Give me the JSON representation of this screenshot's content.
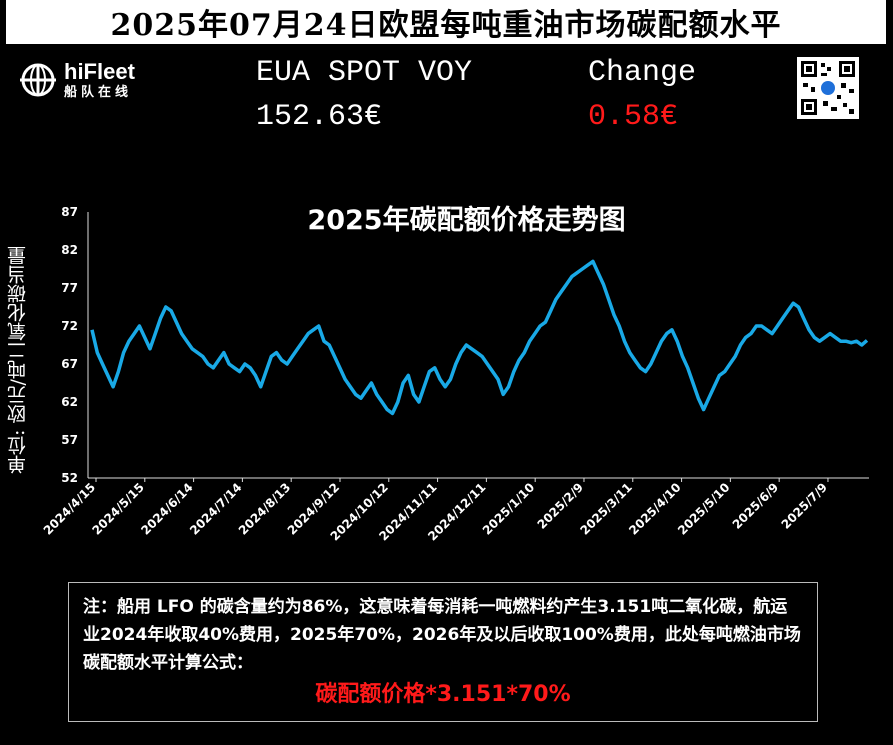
{
  "header": {
    "title": "2025年07月24日欧盟每吨重油市场碳配额水平",
    "logo_name": "hiFleet",
    "logo_sub": "船队在线",
    "eua_label": "EUA SPOT VOY",
    "eua_value": "152.63€",
    "change_label": "Change",
    "change_value": "0.58€"
  },
  "colors": {
    "line": "#19a9e6",
    "change": "#ff1a1a",
    "formula": "#ff1a1a"
  },
  "chart_data": {
    "type": "line",
    "title": "2025年碳配额价格走势图",
    "ylabel": "单位: 欧元/吨二氧化碳当量",
    "xlabel": "",
    "ylim": [
      52,
      87
    ],
    "yticks": [
      52,
      57,
      62,
      67,
      72,
      77,
      82,
      87
    ],
    "xtick_labels": [
      "2024/4/15",
      "2024/5/15",
      "2024/6/14",
      "2024/7/14",
      "2024/8/13",
      "2024/9/12",
      "2024/10/12",
      "2024/11/11",
      "2024/12/11",
      "2025/1/10",
      "2025/2/9",
      "2025/3/11",
      "2025/4/10",
      "2025/5/10",
      "2025/6/9",
      "2025/7/9"
    ],
    "grid": false,
    "series": [
      {
        "values": [
          71.5,
          68.5,
          67.0,
          65.5,
          64.0,
          66.0,
          68.5,
          70.0,
          71.0,
          72.0,
          70.5,
          69.0,
          71.0,
          73.0,
          74.5,
          74.0,
          72.5,
          71.0,
          70.0,
          69.0,
          68.5,
          68.0,
          67.0,
          66.5,
          67.5,
          68.5,
          67.0,
          66.5,
          66.0,
          67.0,
          66.5,
          65.5,
          64.0,
          66.0,
          68.0,
          68.5,
          67.5,
          67.0,
          68.0,
          69.0,
          70.0,
          71.0,
          71.5,
          72.0,
          70.0,
          69.5,
          68.0,
          66.5,
          65.0,
          64.0,
          63.0,
          62.5,
          63.5,
          64.5,
          63.0,
          62.0,
          61.0,
          60.5,
          62.0,
          64.5,
          65.5,
          63.0,
          62.0,
          64.0,
          66.0,
          66.5,
          65.0,
          64.0,
          65.0,
          67.0,
          68.5,
          69.5,
          69.0,
          68.5,
          68.0,
          67.0,
          66.0,
          65.0,
          63.0,
          64.0,
          66.0,
          67.5,
          68.5,
          70.0,
          71.0,
          72.0,
          72.5,
          74.0,
          75.5,
          76.5,
          77.5,
          78.5,
          79.0,
          79.5,
          80.0,
          80.5,
          79.0,
          77.5,
          75.5,
          73.5,
          72.0,
          70.0,
          68.5,
          67.5,
          66.5,
          66.0,
          67.0,
          68.5,
          70.0,
          71.0,
          71.5,
          70.0,
          68.0,
          66.5,
          64.5,
          62.5,
          61.0,
          62.5,
          64.0,
          65.5,
          66.0,
          67.0,
          68.0,
          69.5,
          70.5,
          71.0,
          72.0,
          72.0,
          71.5,
          71.0,
          72.0,
          73.0,
          74.0,
          75.0,
          74.5,
          73.0,
          71.5,
          70.5,
          70.0,
          70.5,
          71.0,
          70.5,
          70.0,
          70.0,
          69.8,
          70.0,
          69.5,
          70.1
        ]
      }
    ]
  },
  "note": {
    "text": "注：船用 LFO 的碳含量约为86%，这意味着每消耗一吨燃料约产生3.151吨二氧化碳，航运业2024年收取40%费用，2025年70%，2026年及以后收取100%费用，此处每吨燃油市场碳配额水平计算公式：",
    "formula": "碳配额价格*3.151*70%"
  }
}
